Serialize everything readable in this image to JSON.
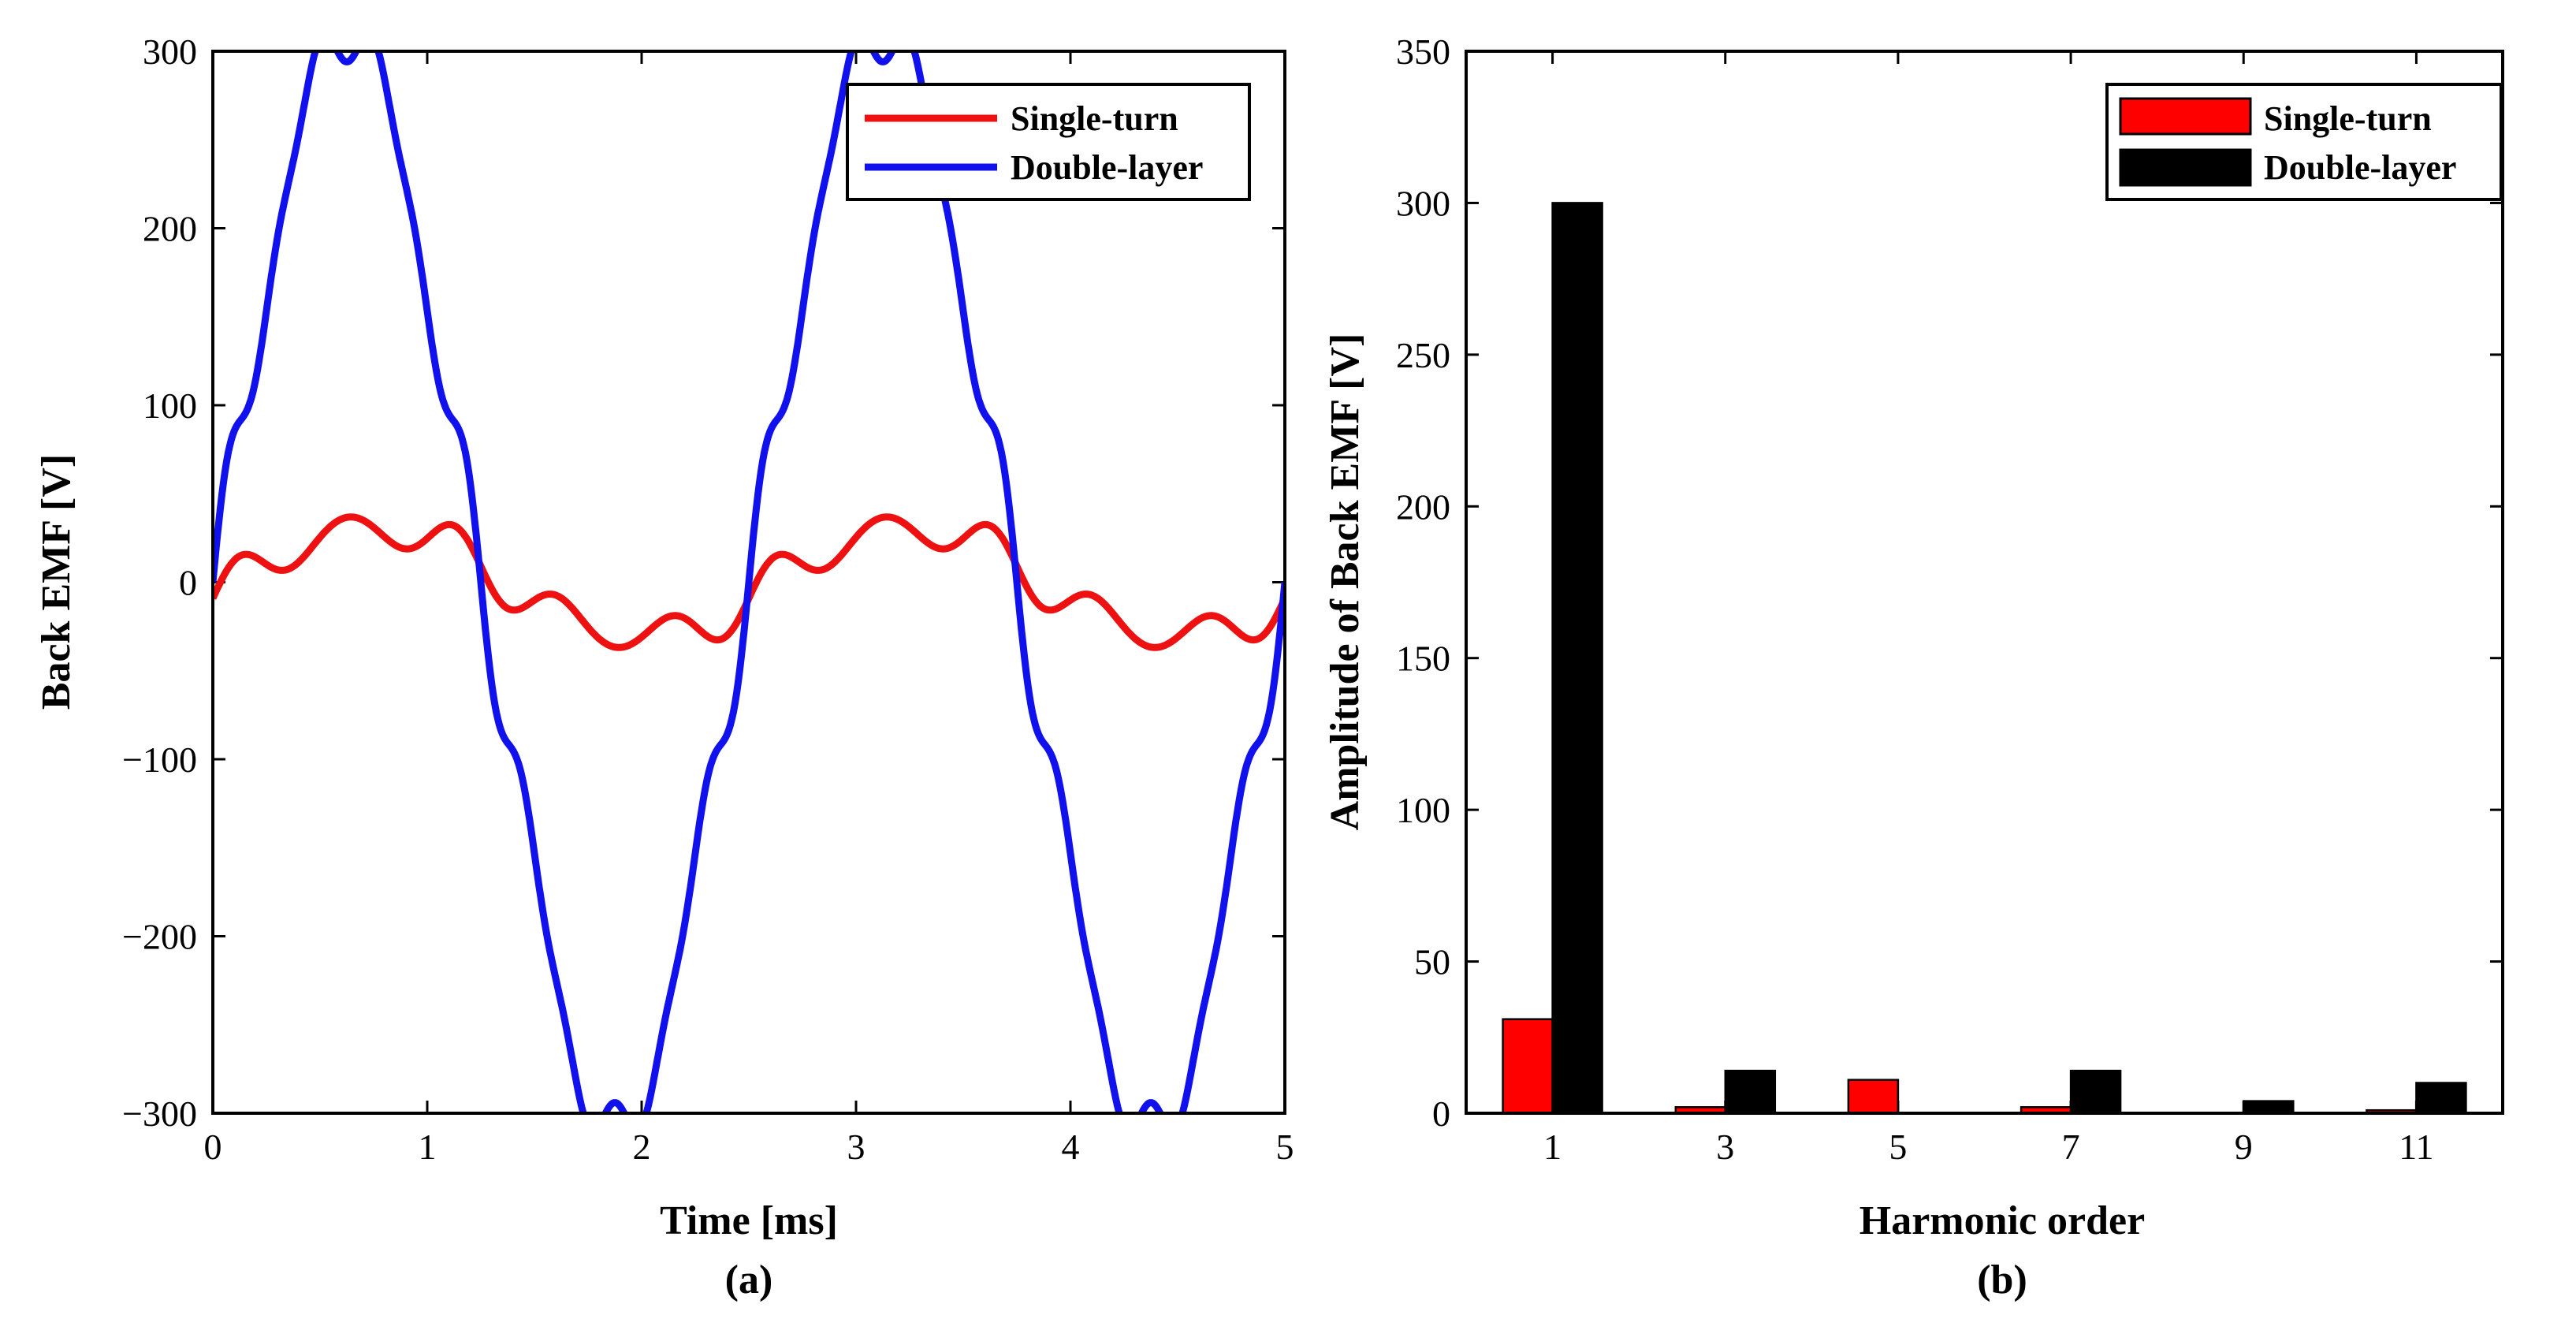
{
  "chart_data": [
    {
      "type": "line",
      "panel_label": "(a)",
      "xlabel": "Time [ms]",
      "ylabel": "Back EMF [V]",
      "xlim": [
        0,
        5
      ],
      "ylim": [
        -300,
        300
      ],
      "xticks": [
        0,
        1,
        2,
        3,
        4,
        5
      ],
      "xtick_labels": [
        "0",
        "1",
        "2",
        "3",
        "4",
        "5"
      ],
      "yticks": [
        300,
        200,
        100,
        0,
        -100,
        -200,
        -300
      ],
      "ytick_labels": [
        "300",
        "200",
        "100",
        "0",
        "−100",
        "−200",
        "−300"
      ],
      "legend_position": "top-right",
      "period_ms": 2.5,
      "series": [
        {
          "name": "Single-turn",
          "color": "#ee1111",
          "harmonics": [
            {
              "order": 1,
              "amplitude": 31,
              "phase_deg": -17
            },
            {
              "order": 3,
              "amplitude": 2,
              "phase_deg": 0
            },
            {
              "order": 5,
              "amplitude": 11,
              "phase_deg": 0
            },
            {
              "order": 7,
              "amplitude": 2,
              "phase_deg": 0
            }
          ]
        },
        {
          "name": "Double-layer",
          "color": "#1111ee",
          "harmonics": [
            {
              "order": 1,
              "amplitude": 300,
              "phase_deg": 0
            },
            {
              "order": 3,
              "amplitude": 14,
              "phase_deg": 180
            },
            {
              "order": 7,
              "amplitude": 14,
              "phase_deg": 0
            },
            {
              "order": 9,
              "amplitude": 4,
              "phase_deg": 0
            },
            {
              "order": 11,
              "amplitude": 10,
              "phase_deg": 0
            }
          ]
        }
      ]
    },
    {
      "type": "bar",
      "panel_label": "(b)",
      "xlabel": "Harmonic order",
      "ylabel": "Amplitude of Back EMF [V]",
      "categories": [
        "1",
        "3",
        "5",
        "7",
        "9",
        "11"
      ],
      "ylim": [
        0,
        350
      ],
      "yticks": [
        0,
        50,
        100,
        150,
        200,
        250,
        300,
        350
      ],
      "ytick_labels": [
        "0",
        "50",
        "100",
        "150",
        "200",
        "250",
        "300",
        "350"
      ],
      "legend_position": "top-right",
      "series": [
        {
          "name": "Single-turn",
          "color": "#ff0000",
          "values": [
            31,
            2,
            11,
            2,
            0,
            1
          ]
        },
        {
          "name": "Double-layer",
          "color": "#000000",
          "values": [
            300,
            14,
            0,
            14,
            4,
            10
          ]
        }
      ]
    }
  ]
}
